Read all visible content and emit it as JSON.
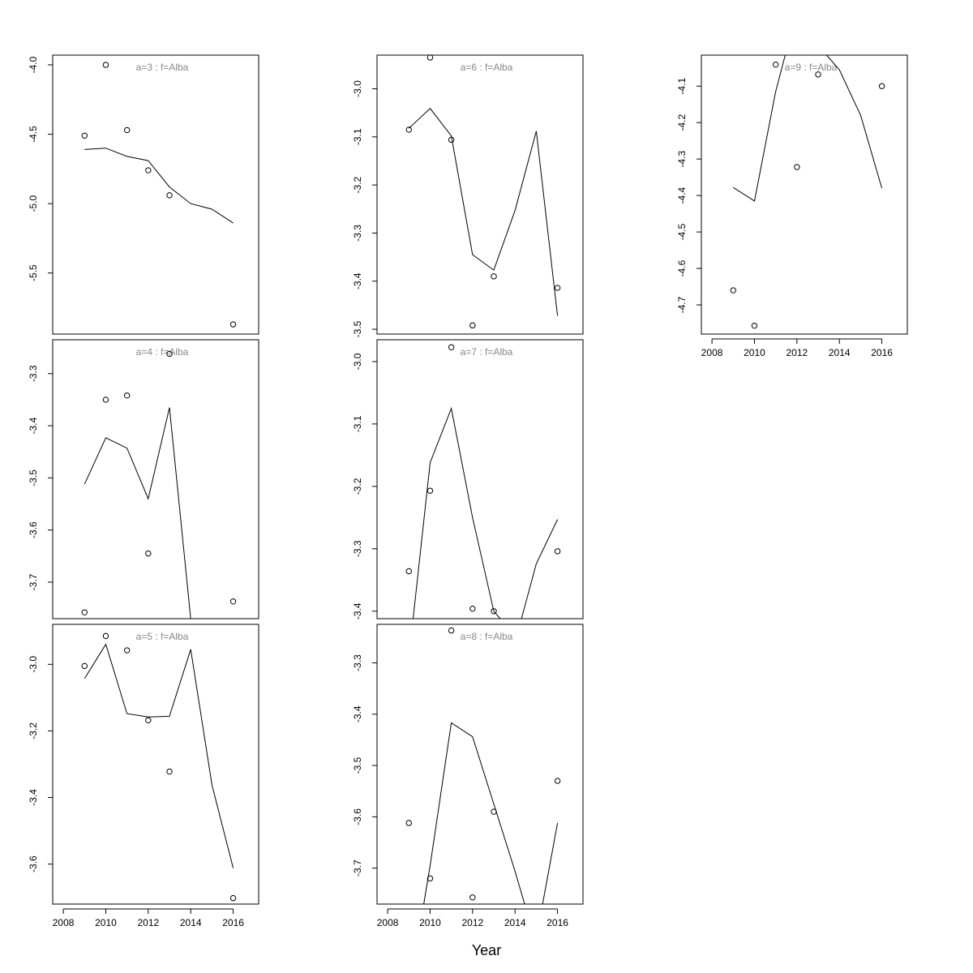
{
  "figure": {
    "xlabel": "Year"
  },
  "colors": {
    "title": "#888888",
    "line": "#000000",
    "points": "#000000"
  },
  "chart_data": [
    {
      "type": "scatter+line",
      "title": "a=3  :  f=Alba",
      "xlim": [
        2007.5,
        2017.2
      ],
      "ylim": [
        -5.94,
        -3.93
      ],
      "yticks": [
        "-4.0",
        "-4.5",
        "-5.0",
        "-5.5"
      ],
      "xticks": [],
      "points": {
        "x": [
          2009,
          2010,
          2011,
          2012,
          2013,
          2016
        ],
        "y": [
          -4.51,
          -4.0,
          -4.47,
          -4.76,
          -4.94,
          -5.87
        ]
      },
      "line": {
        "x": [
          2009,
          2010,
          2011,
          2012,
          2013,
          2014,
          2015,
          2016
        ],
        "y": [
          -4.61,
          -4.6,
          -4.66,
          -4.69,
          -4.88,
          -5.0,
          -5.04,
          -5.14
        ]
      }
    },
    {
      "type": "scatter+line",
      "title": "a=4  :  f=Alba",
      "xlim": [
        2007.5,
        2017.2
      ],
      "ylim": [
        -3.77,
        -3.235
      ],
      "yticks": [
        "-3.3",
        "-3.4",
        "-3.5",
        "-3.6",
        "-3.7"
      ],
      "xticks": [],
      "points": {
        "x": [
          2009,
          2010,
          2011,
          2012,
          2013,
          2016
        ],
        "y": [
          -3.758,
          -3.35,
          -3.342,
          -3.645,
          -3.262,
          -3.737
        ]
      },
      "line": {
        "x": [
          2009,
          2010,
          2011,
          2012,
          2013,
          2014
        ],
        "y": [
          -3.512,
          -3.423,
          -3.443,
          -3.54,
          -3.365,
          -3.77
        ]
      }
    },
    {
      "type": "scatter+line",
      "title": "a=5  :  f=Alba",
      "xlim": [
        2007.5,
        2017.2
      ],
      "ylim": [
        -3.72,
        -2.88
      ],
      "yticks": [
        "-3.0",
        "-3.2",
        "-3.4",
        "-3.6"
      ],
      "xticks": [
        "2008",
        "2010",
        "2012",
        "2014",
        "2016"
      ],
      "points": {
        "x": [
          2009,
          2010,
          2011,
          2012,
          2013,
          2016
        ],
        "y": [
          -3.005,
          -2.915,
          -2.958,
          -3.168,
          -3.322,
          -3.702
        ]
      },
      "line": {
        "x": [
          2009,
          2010,
          2011,
          2012,
          2013,
          2014,
          2015,
          2016
        ],
        "y": [
          -3.043,
          -2.94,
          -3.148,
          -3.158,
          -3.156,
          -2.955,
          -3.362,
          -3.612
        ]
      }
    },
    {
      "type": "scatter+line",
      "title": "a=6  :  f=Alba",
      "xlim": [
        2007.5,
        2017.2
      ],
      "ylim": [
        -3.51,
        -2.93
      ],
      "yticks": [
        "-3.0",
        "-3.1",
        "-3.2",
        "-3.3",
        "-3.4",
        "-3.5"
      ],
      "xticks": [],
      "points": {
        "x": [
          2009,
          2010,
          2011,
          2012,
          2013,
          2016
        ],
        "y": [
          -3.085,
          -2.935,
          -3.106,
          -3.492,
          -3.39,
          -3.414
        ]
      },
      "line": {
        "x": [
          2009,
          2010,
          2011,
          2012,
          2013,
          2014,
          2015,
          2016
        ],
        "y": [
          -3.082,
          -3.041,
          -3.098,
          -3.345,
          -3.377,
          -3.253,
          -3.088,
          -3.472
        ]
      }
    },
    {
      "type": "scatter+line",
      "title": "a=7  :  f=Alba",
      "xlim": [
        2007.5,
        2017.2
      ],
      "ylim": [
        -3.412,
        -2.965
      ],
      "yticks": [
        "-3.0",
        "-3.1",
        "-3.2",
        "-3.3",
        "-3.4"
      ],
      "xticks": [],
      "points": {
        "x": [
          2009,
          2010,
          2011,
          2012,
          2013,
          2016
        ],
        "y": [
          -3.336,
          -3.207,
          -2.977,
          -3.396,
          -3.4,
          -3.304
        ]
      },
      "line": {
        "x": [
          2009.2,
          2010,
          2011,
          2012,
          2013,
          2013.3
        ],
        "y": [
          -3.412,
          -3.162,
          -3.075,
          -3.25,
          -3.4,
          -3.412
        ],
        "x2": [
          2014.3,
          2015,
          2016
        ],
        "y2": [
          -3.412,
          -3.324,
          -3.253
        ]
      }
    },
    {
      "type": "scatter+line",
      "title": "a=8  :  f=Alba",
      "xlim": [
        2007.5,
        2017.2
      ],
      "ylim": [
        -3.77,
        -3.225
      ],
      "yticks": [
        "-3.3",
        "-3.4",
        "-3.5",
        "-3.6",
        "-3.7"
      ],
      "xticks": [
        "2008",
        "2010",
        "2012",
        "2014",
        "2016"
      ],
      "points": {
        "x": [
          2009,
          2010,
          2011,
          2012,
          2013,
          2016
        ],
        "y": [
          -3.612,
          -3.72,
          -3.237,
          -3.757,
          -3.59,
          -3.53
        ]
      },
      "line": {
        "x": [
          2009.7,
          2010,
          2011,
          2012,
          2013,
          2014,
          2014.45
        ],
        "y": [
          -3.77,
          -3.695,
          -3.417,
          -3.444,
          -3.575,
          -3.706,
          -3.77
        ],
        "x2": [
          2015.3,
          2016
        ],
        "y2": [
          -3.77,
          -3.612
        ]
      }
    },
    {
      "type": "scatter+line",
      "title": "a=9  :  f=Alba",
      "xlim": [
        2007.5,
        2017.2
      ],
      "ylim": [
        -4.78,
        -4.015
      ],
      "yticks": [
        "-4.1",
        "-4.2",
        "-4.3",
        "-4.4",
        "-4.5",
        "-4.6",
        "-4.7"
      ],
      "xticks": [
        "2008",
        "2010",
        "2012",
        "2014",
        "2016"
      ],
      "points": {
        "x": [
          2009,
          2010,
          2011,
          2012,
          2013,
          2016
        ],
        "y": [
          -4.66,
          -4.757,
          -4.041,
          -4.322,
          -4.068,
          -4.1
        ]
      },
      "line": {
        "x": [
          2009,
          2010,
          2011,
          2011.45
        ],
        "y": [
          -4.378,
          -4.415,
          -4.115,
          -4.015
        ],
        "x2": [
          2013.4,
          2014,
          2015,
          2016
        ],
        "y2": [
          -4.015,
          -4.055,
          -4.18,
          -4.38
        ]
      }
    }
  ]
}
